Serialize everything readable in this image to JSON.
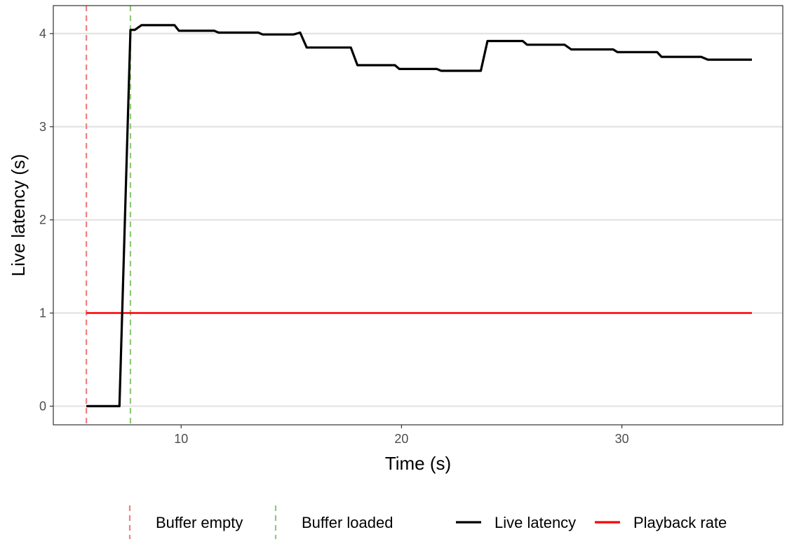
{
  "chart_data": {
    "type": "line",
    "xlabel": "Time (s)",
    "ylabel": "Live latency (s)",
    "xlim": [
      4.2,
      37.3
    ],
    "ylim": [
      -0.2,
      4.3
    ],
    "x_ticks": [
      10,
      20,
      30
    ],
    "y_ticks": [
      0,
      1,
      2,
      3,
      4
    ],
    "grid": "horizontal major",
    "legend_position": "bottom",
    "vlines": [
      {
        "name": "Buffer empty",
        "x": 5.7,
        "color": "#f08080",
        "style": "dashed"
      },
      {
        "name": "Buffer loaded",
        "x": 7.7,
        "color": "#90c978",
        "style": "dashed"
      }
    ],
    "series": [
      {
        "name": "Live latency",
        "color": "#000000",
        "points": [
          [
            5.7,
            0
          ],
          [
            7.2,
            0
          ],
          [
            7.7,
            4.04
          ],
          [
            7.9,
            4.04
          ],
          [
            8.2,
            4.09
          ],
          [
            9.7,
            4.09
          ],
          [
            9.9,
            4.03
          ],
          [
            11.5,
            4.03
          ],
          [
            11.7,
            4.01
          ],
          [
            13.5,
            4.01
          ],
          [
            13.7,
            3.99
          ],
          [
            15.1,
            3.99
          ],
          [
            15.4,
            4.01
          ],
          [
            15.7,
            3.85
          ],
          [
            17.7,
            3.85
          ],
          [
            18.0,
            3.66
          ],
          [
            19.7,
            3.66
          ],
          [
            19.9,
            3.62
          ],
          [
            21.6,
            3.62
          ],
          [
            21.8,
            3.6
          ],
          [
            23.6,
            3.6
          ],
          [
            23.9,
            3.92
          ],
          [
            25.5,
            3.92
          ],
          [
            25.7,
            3.88
          ],
          [
            27.4,
            3.88
          ],
          [
            27.7,
            3.83
          ],
          [
            29.6,
            3.83
          ],
          [
            29.8,
            3.8
          ],
          [
            31.6,
            3.8
          ],
          [
            31.8,
            3.75
          ],
          [
            33.6,
            3.75
          ],
          [
            33.9,
            3.72
          ],
          [
            35.9,
            3.72
          ]
        ]
      },
      {
        "name": "Playback rate",
        "color": "#ff0000",
        "points": [
          [
            5.7,
            1
          ],
          [
            35.9,
            1
          ]
        ]
      }
    ],
    "legend": [
      {
        "label": "Buffer empty",
        "kind": "dashed-vertical",
        "color": "#f08080"
      },
      {
        "label": "Buffer loaded",
        "kind": "dashed-vertical",
        "color": "#90c978"
      },
      {
        "label": "Live latency",
        "kind": "line",
        "color": "#000000"
      },
      {
        "label": "Playback rate",
        "kind": "line",
        "color": "#ff0000"
      }
    ]
  }
}
